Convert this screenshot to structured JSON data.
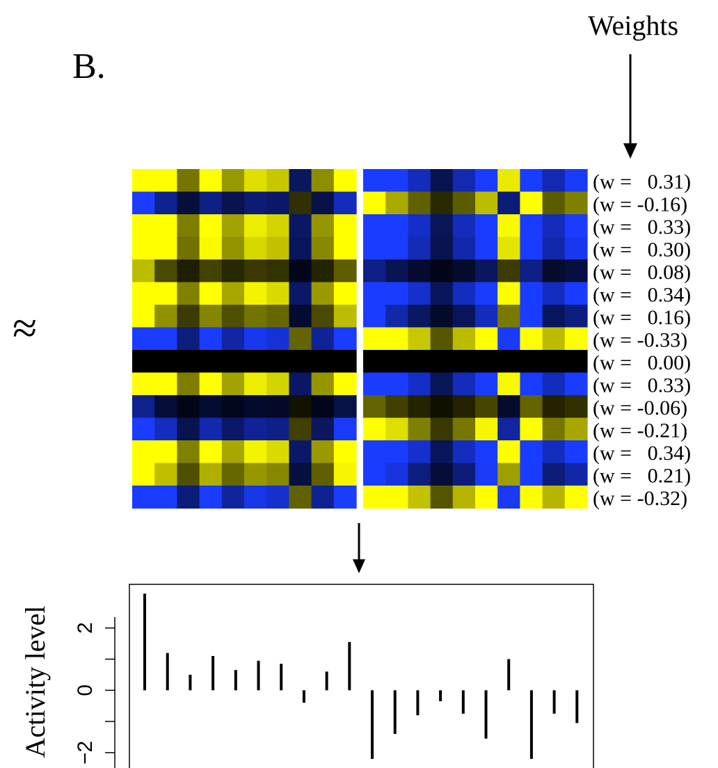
{
  "panel_label": "B.",
  "weights_label": "Weights",
  "approx_symbol": "≈",
  "chart_data": [
    {
      "type": "heatmap",
      "title": "",
      "colors": {
        "low": "#1a3cff",
        "mid": "#000000",
        "high": "#ffff00"
      },
      "weight_format": "(w = {v})",
      "row_weights": [
        "0.31",
        "-0.16",
        "0.33",
        "0.30",
        "0.08",
        "0.34",
        "0.16",
        "-0.33",
        "0.00",
        "0.33",
        "-0.06",
        "-0.21",
        "0.34",
        "0.21",
        "-0.32"
      ],
      "column_values": [
        3.1,
        1.2,
        0.5,
        1.1,
        0.65,
        0.95,
        0.85,
        -0.4,
        0.6,
        1.55,
        -2.2,
        -1.4,
        -0.8,
        -0.35,
        -0.75,
        -1.55,
        1.0,
        -2.2,
        -0.75,
        -1.05
      ],
      "left_block_columns": 10,
      "right_block_columns": 10
    },
    {
      "type": "bar",
      "title": "",
      "xlabel": "",
      "ylabel": "Activity level",
      "ylim": [
        -2.85,
        3.4
      ],
      "yticks": [
        -2,
        0,
        2
      ],
      "ytick_labels": [
        "−2",
        "0",
        "2"
      ],
      "grid": false,
      "values": [
        3.1,
        1.2,
        0.5,
        1.1,
        0.65,
        0.95,
        0.85,
        -0.4,
        0.6,
        1.55,
        -2.2,
        -1.4,
        -0.8,
        -0.35,
        -0.75,
        -1.55,
        1.0,
        -2.2,
        -0.75,
        -1.05
      ]
    }
  ]
}
